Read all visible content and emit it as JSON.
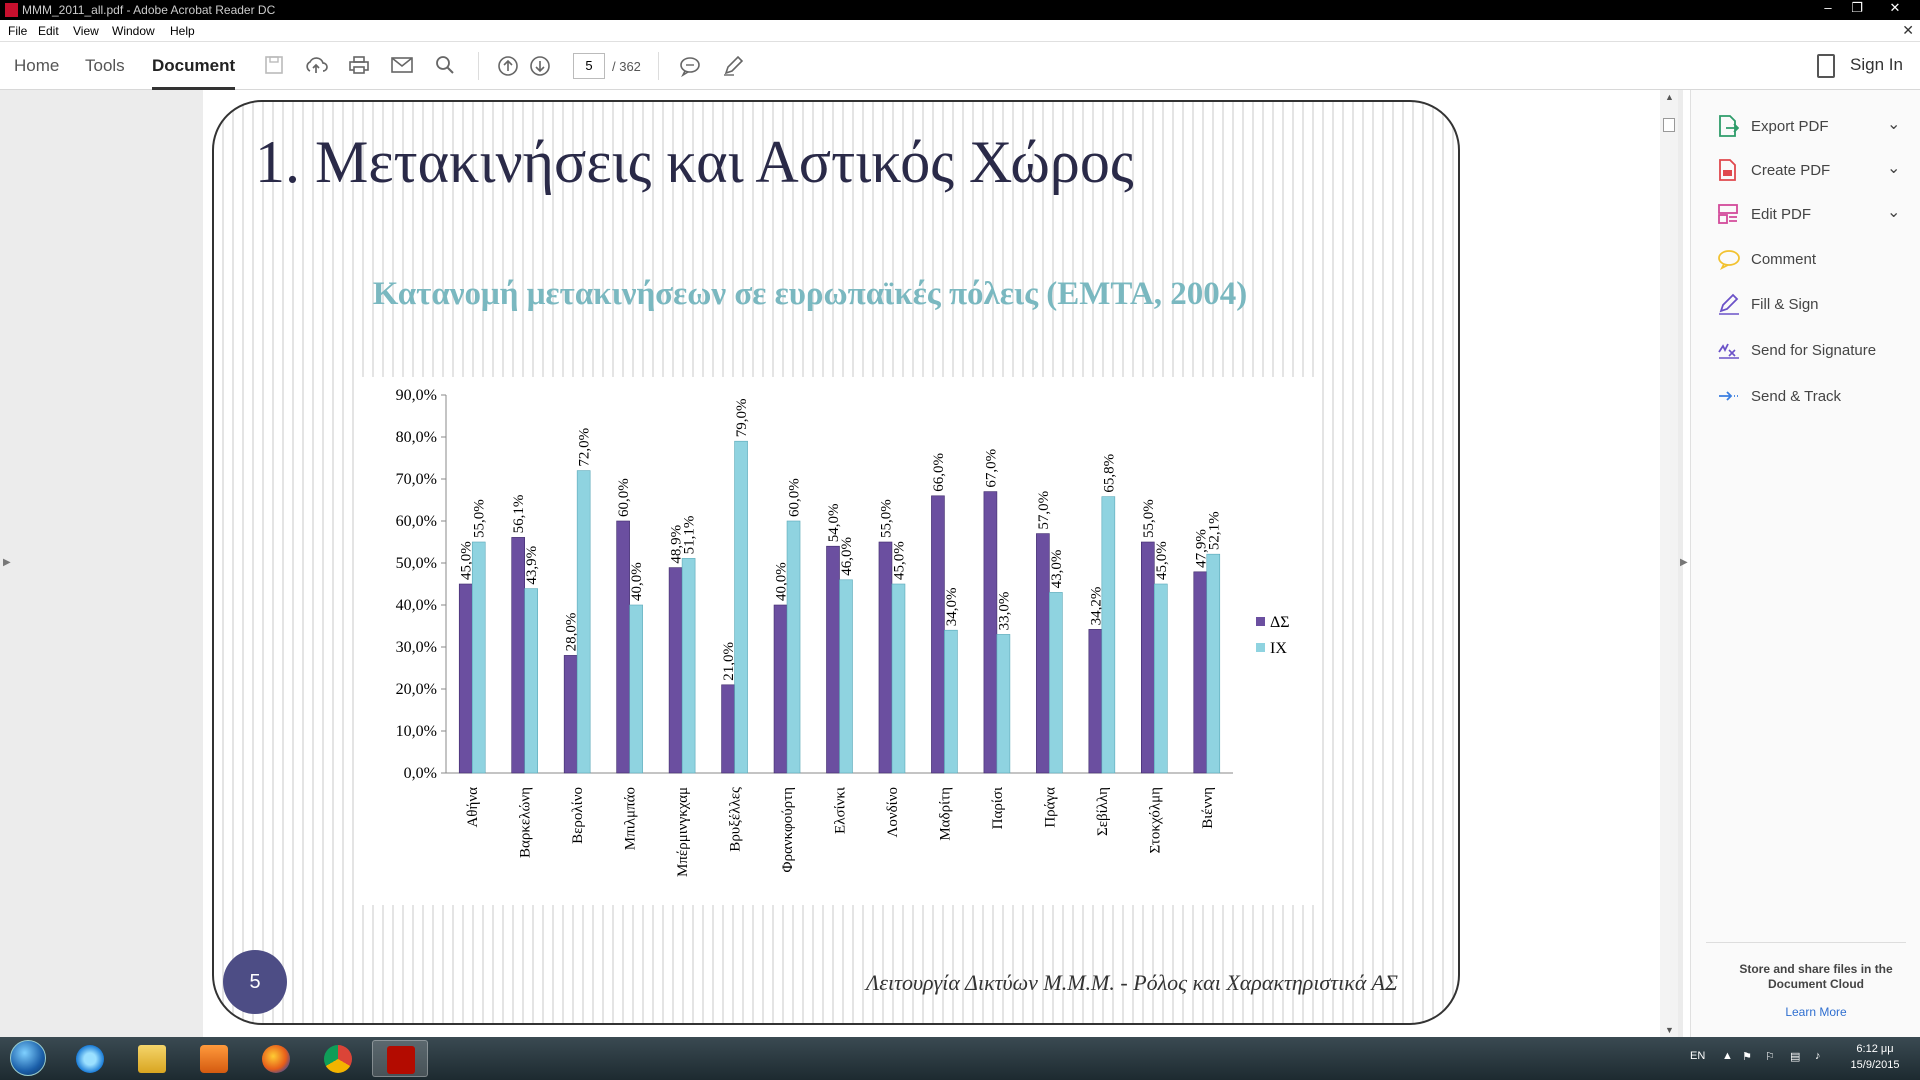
{
  "window": {
    "title": "MMM_2011_all.pdf - Adobe Acrobat Reader DC",
    "controls": [
      "–",
      "❐",
      "✕"
    ]
  },
  "menubar": {
    "items": [
      "File",
      "Edit",
      "View",
      "Window",
      "Help"
    ],
    "close": "✕"
  },
  "toolbar": {
    "tabs": [
      "Home",
      "Tools",
      "Document"
    ],
    "page_current": "5",
    "page_total": "/ 362",
    "sign_in": "Sign In"
  },
  "document": {
    "slide_title": "1. Μετακινήσεις και Αστικός Χώρος",
    "page_badge": "5",
    "footer": "Λειτουργία Δικτύων Μ.Μ.Μ.  -  Ρόλος και Χαρακτηριστικά ΑΣ"
  },
  "chart_data": {
    "type": "bar",
    "title": "Κατανομή μετακινήσεων σε ευρωπαϊκές πόλεις (EMTA, 2004)",
    "categories": [
      "Αθήνα",
      "Βαρκελώνη",
      "Βερολίνο",
      "Μπιλμπάο",
      "Μπέρμινγκχαμ",
      "Βρυξέλλες",
      "Φρανκφούρτη",
      "Ελσίνκι",
      "Λονδίνο",
      "Μαδρίτη",
      "Παρίσι",
      "Πράγα",
      "Σεβίλλη",
      "Στοκχόλμη",
      "Βιέννη"
    ],
    "series": [
      {
        "name": "ΔΣ",
        "color": "#6b4fa0",
        "values": [
          45.0,
          56.1,
          28.0,
          60.0,
          48.9,
          21.0,
          40.0,
          54.0,
          55.0,
          66.0,
          67.0,
          57.0,
          34.2,
          55.0,
          47.9
        ]
      },
      {
        "name": "ΙΧ",
        "color": "#8fd3e0",
        "values": [
          55.0,
          43.9,
          72.0,
          40.0,
          51.1,
          79.0,
          60.0,
          46.0,
          45.0,
          34.0,
          33.0,
          43.0,
          65.8,
          45.0,
          52.1
        ]
      }
    ],
    "value_labels": {
      "ΔΣ": [
        "45,0%",
        "56,1%",
        "28,0%",
        "60,0%",
        "48,9%",
        "21,0%",
        "40,0%",
        "54,0%",
        "55,0%",
        "66,0%",
        "67,0%",
        "57,0%",
        "34,2%",
        "55,0%",
        "47,9%"
      ],
      "ΙΧ": [
        "55,0%",
        "43,9%",
        "72,0%",
        "40,0%",
        "51,1%",
        "79,0%",
        "60,0%",
        "46,0%",
        "45,0%",
        "34,0%",
        "33,0%",
        "43,0%",
        "65,8%",
        "45,0%",
        "52,1%"
      ]
    },
    "y_ticks": [
      "0,0%",
      "10,0%",
      "20,0%",
      "30,0%",
      "40,0%",
      "50,0%",
      "60,0%",
      "70,0%",
      "80,0%",
      "90,0%"
    ],
    "ylim": [
      0,
      90
    ],
    "legend_position": "right",
    "xlabel": "",
    "ylabel": ""
  },
  "tools_pane": {
    "items": [
      {
        "label": "Export PDF",
        "color": "#2e9c6a",
        "has_chevron": true
      },
      {
        "label": "Create PDF",
        "color": "#e0484d",
        "has_chevron": true
      },
      {
        "label": "Edit PDF",
        "color": "#d34a9a",
        "has_chevron": true
      },
      {
        "label": "Comment",
        "color": "#f2c230",
        "has_chevron": false
      },
      {
        "label": "Fill & Sign",
        "color": "#6b52c8",
        "has_chevron": false
      },
      {
        "label": "Send for Signature",
        "color": "#6b52c8",
        "has_chevron": false
      },
      {
        "label": "Send & Track",
        "color": "#3a7ee0",
        "has_chevron": false
      }
    ],
    "cloud_text": "Store and share files in the Document Cloud",
    "learn_more": "Learn More"
  },
  "taskbar": {
    "language": "EN",
    "time": "6:12 μμ",
    "date": "15/9/2015"
  }
}
